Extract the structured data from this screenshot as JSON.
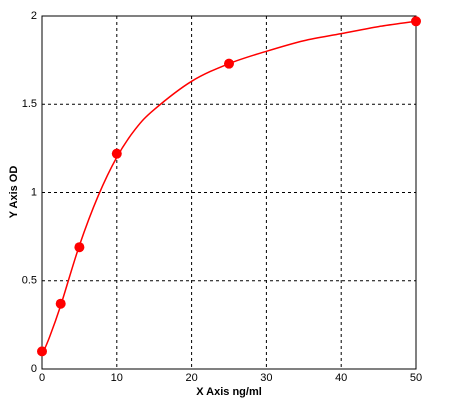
{
  "chart_data": {
    "type": "scatter",
    "x_label": "X Axis ng/ml",
    "y_label": "Y Axis OD",
    "x": [
      0,
      2.5,
      5,
      10,
      25,
      50
    ],
    "values": [
      0.1,
      0.37,
      0.69,
      1.22,
      1.73,
      1.97
    ],
    "color": "#ff0000",
    "fit_x": [
      0,
      1,
      2.5,
      5,
      7.5,
      10,
      12.5,
      15,
      20,
      25,
      30,
      35,
      40,
      45,
      50
    ],
    "fit_values": [
      0.08,
      0.18,
      0.36,
      0.7,
      0.98,
      1.2,
      1.36,
      1.47,
      1.63,
      1.73,
      1.8,
      1.86,
      1.9,
      1.94,
      1.97
    ],
    "xlim": [
      0,
      50
    ],
    "ylim": [
      0,
      2
    ],
    "xticks": [
      0,
      10,
      20,
      30,
      40,
      50
    ],
    "yticks": [
      0,
      0.5,
      1,
      1.5,
      2
    ],
    "grid": true
  }
}
